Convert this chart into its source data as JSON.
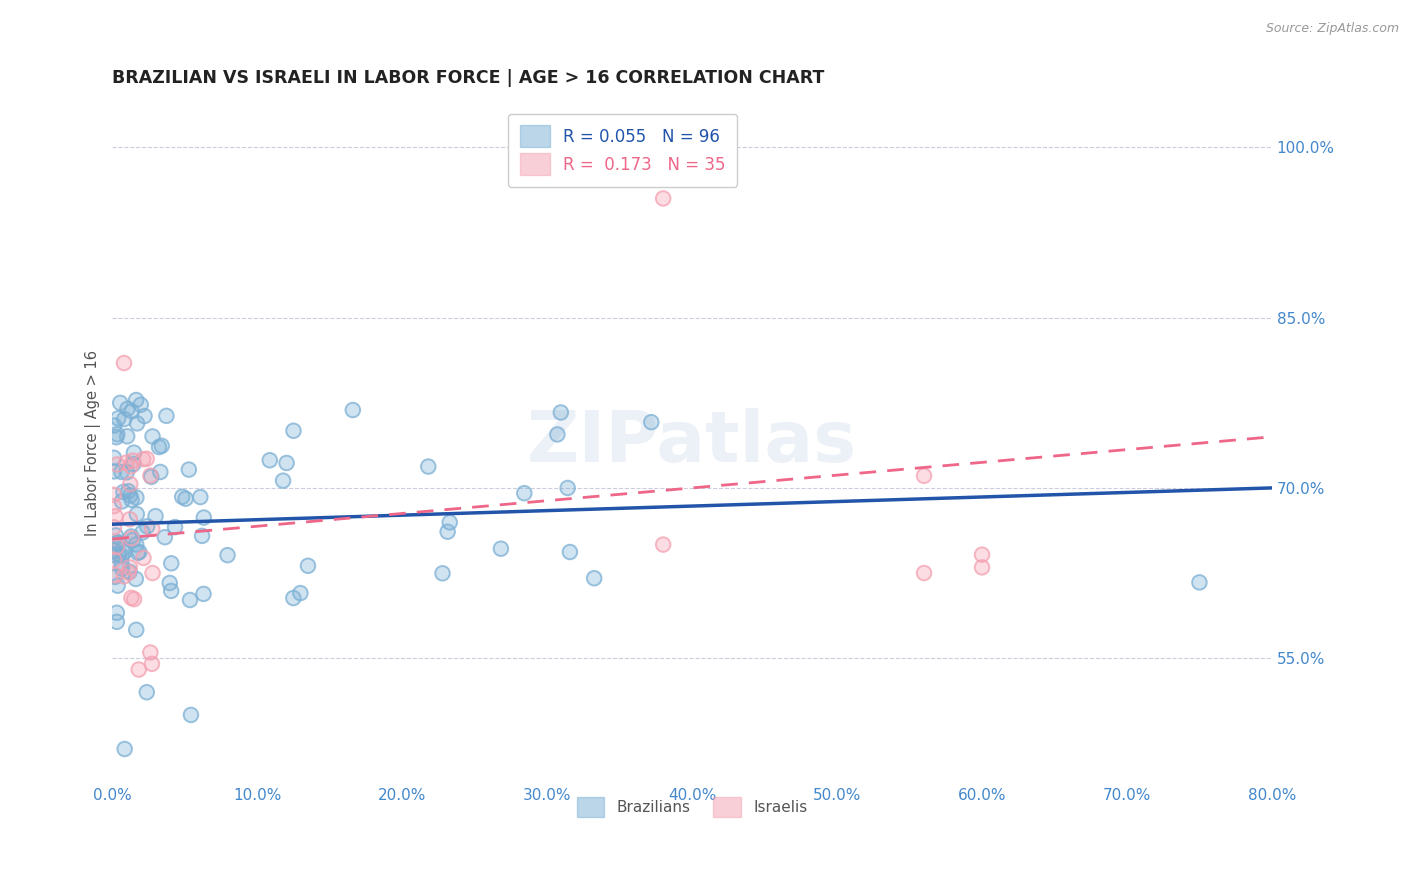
{
  "title": "BRAZILIAN VS ISRAELI IN LABOR FORCE | AGE > 16 CORRELATION CHART",
  "source_text": "Source: ZipAtlas.com",
  "ylabel": "In Labor Force | Age > 16",
  "xmin": 0.0,
  "xmax": 0.8,
  "ymin": 0.44,
  "ymax": 1.04,
  "yticks": [
    0.55,
    0.7,
    0.85,
    1.0
  ],
  "xticks": [
    0.0,
    0.1,
    0.2,
    0.3,
    0.4,
    0.5,
    0.6,
    0.7,
    0.8
  ],
  "blue_color": "#7BAFD4",
  "pink_color": "#F4A0B0",
  "line_blue": "#2255AA",
  "line_pink": "#EE6688",
  "bg_color": "#FFFFFF",
  "grid_color": "#CCCCDD",
  "watermark": "ZIPatlas",
  "legend_R_blue": "0.055",
  "legend_N_blue": "96",
  "legend_R_pink": "0.173",
  "legend_N_pink": "35",
  "title_color": "#222222",
  "axis_label_color": "#555555",
  "tick_color": "#4488CC",
  "tick_fontsize": 11,
  "source_color": "#999999"
}
